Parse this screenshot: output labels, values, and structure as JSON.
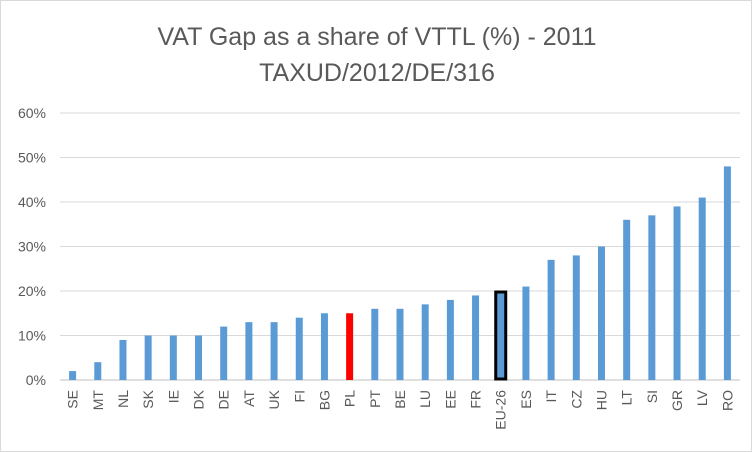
{
  "chart_data": {
    "type": "bar",
    "title": "VAT Gap as a share of VTTL (%) - 2011",
    "subtitle": "TAXUD/2012/DE/316",
    "xlabel": "",
    "ylabel": "",
    "ylim": [
      0,
      60
    ],
    "yticks": [
      "0%",
      "10%",
      "20%",
      "30%",
      "40%",
      "50%",
      "60%"
    ],
    "grid": true,
    "legend": "none",
    "categories": [
      "SE",
      "MT",
      "NL",
      "SK",
      "IE",
      "DK",
      "DE",
      "AT",
      "UK",
      "FI",
      "BG",
      "PL",
      "PT",
      "BE",
      "LU",
      "EE",
      "FR",
      "EU-26",
      "ES",
      "IT",
      "CZ",
      "HU",
      "LT",
      "SI",
      "GR",
      "LV",
      "RO"
    ],
    "values": [
      2,
      4,
      9,
      10,
      10,
      10,
      12,
      13,
      13,
      14,
      15,
      15,
      16,
      16,
      17,
      18,
      19,
      20,
      21,
      27,
      28,
      30,
      36,
      37,
      39,
      41,
      48
    ],
    "colors": {
      "default": "#5b9bd5",
      "PL": "#ff0000",
      "EU-26": "#000000",
      "grid": "#d9d9d9",
      "text": "#595959"
    }
  }
}
